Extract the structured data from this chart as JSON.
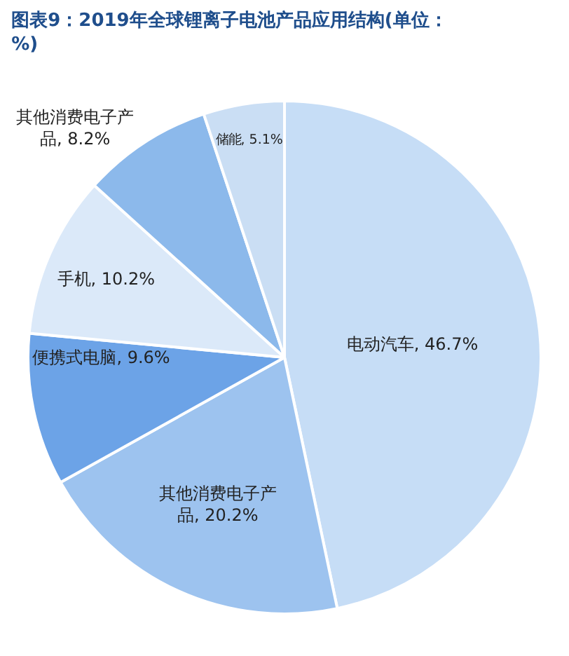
{
  "chart_data": {
    "type": "pie",
    "title": "图表9：2019年全球锂离子电池产品应用结构(单位：%)",
    "categories": [
      "电动汽车",
      "其他消费电子产品",
      "便携式电脑",
      "手机",
      "其他消费电子产品",
      "储能"
    ],
    "values": [
      46.7,
      20.2,
      9.6,
      10.2,
      8.2,
      5.1
    ],
    "colors": [
      "#c6ddf6",
      "#9dc3ef",
      "#6ca3e7",
      "#dbe9f9",
      "#8cb9eb",
      "#cadef4"
    ],
    "value_labels": [
      "46.7%",
      "20.2%",
      "9.6%",
      "10.2%",
      "8.2%",
      "5.1%"
    ],
    "legend": false
  }
}
